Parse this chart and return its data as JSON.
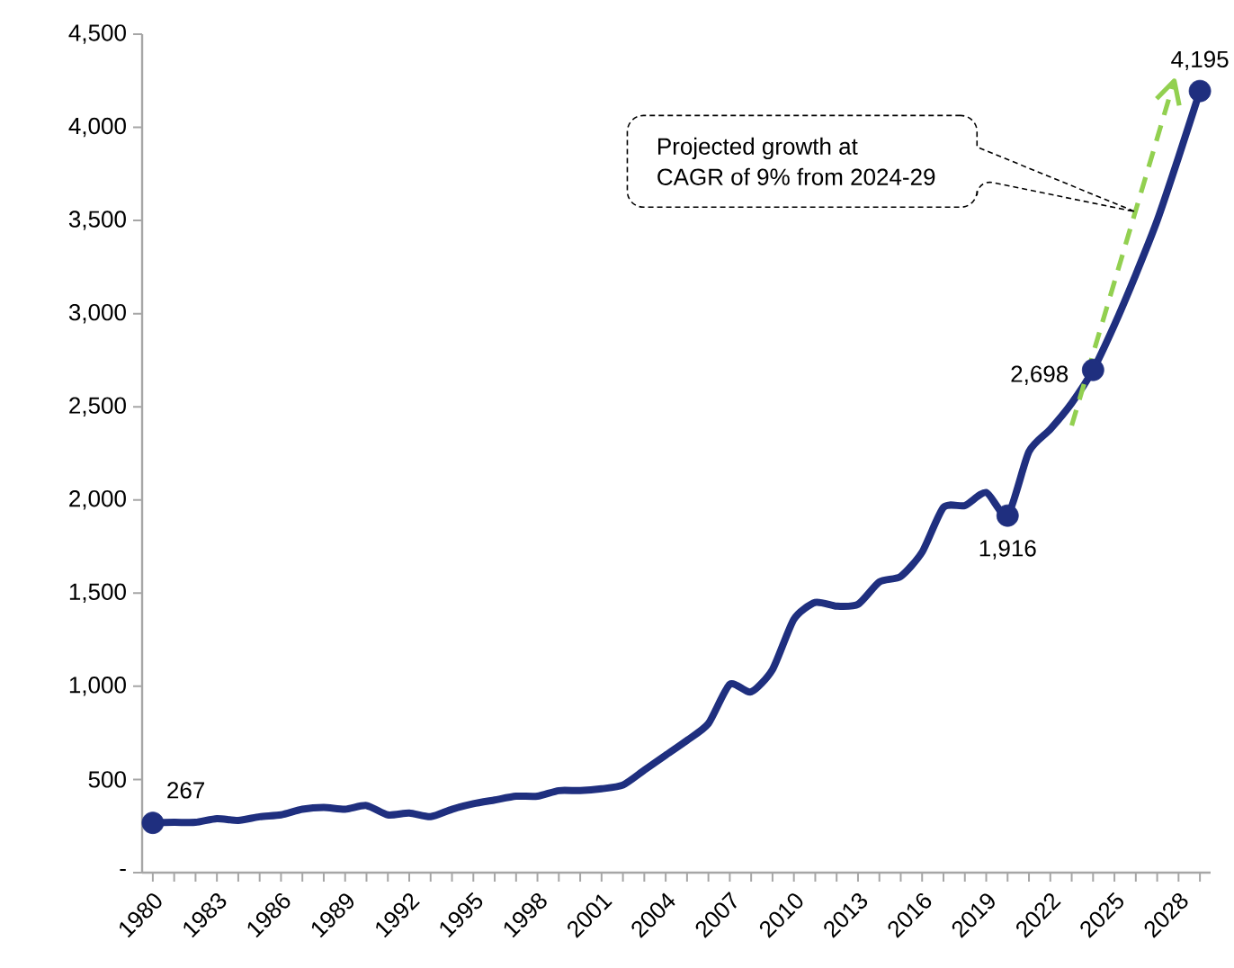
{
  "chart_data": {
    "type": "line",
    "x": [
      1980,
      1981,
      1982,
      1983,
      1984,
      1985,
      1986,
      1987,
      1988,
      1989,
      1990,
      1991,
      1992,
      1993,
      1994,
      1995,
      1996,
      1997,
      1998,
      1999,
      2000,
      2001,
      2002,
      2003,
      2004,
      2005,
      2006,
      2007,
      2008,
      2009,
      2010,
      2011,
      2012,
      2013,
      2014,
      2015,
      2016,
      2017,
      2018,
      2019,
      2020,
      2021,
      2022,
      2023,
      2024,
      2025,
      2026,
      2027,
      2028,
      2029
    ],
    "series": [
      {
        "color": "#1f2f7f",
        "marker": "none",
        "line_style": "solid",
        "values": [
          267,
          270,
          270,
          290,
          280,
          300,
          310,
          340,
          350,
          340,
          360,
          310,
          320,
          300,
          340,
          370,
          390,
          410,
          410,
          440,
          440,
          450,
          470,
          550,
          630,
          710,
          800,
          1010,
          970,
          1090,
          1360,
          1450,
          1430,
          1440,
          1560,
          1590,
          1720,
          1960,
          1970,
          2040,
          1916,
          2260,
          2380,
          2520,
          2698,
          2940,
          3210,
          3500,
          3840,
          4195
        ]
      },
      {
        "type": "scatter",
        "color": "#1f2f7f",
        "marker": "circle",
        "x": [
          1980,
          2020,
          2024,
          2029
        ],
        "values": [
          267,
          1916,
          2698,
          4195
        ],
        "value_labels": [
          "267",
          "1,916",
          "2,698",
          "4,195"
        ]
      },
      {
        "type": "line",
        "color": "#92d050",
        "marker": "none",
        "line_style": "dashed",
        "x": [
          2023,
          2027.8
        ],
        "values": [
          2400,
          4250
        ]
      }
    ],
    "annotations": [
      "Projected growth at\nCAGR of 9% from 2024-29"
    ],
    "xlim": [
      1979.5,
      2029.5
    ],
    "xticks": [
      1980,
      {
        "value": 1981,
        "label": null
      },
      {
        "value": 1982,
        "label": null
      },
      1983,
      {
        "value": 1984,
        "label": null
      },
      {
        "value": 1985,
        "label": null
      },
      1986,
      {
        "value": 1987,
        "label": null
      },
      {
        "value": 1988,
        "label": null
      },
      1989,
      {
        "value": 1990,
        "label": null
      },
      {
        "value": 1991,
        "label": null
      },
      1992,
      {
        "value": 1993,
        "label": null
      },
      {
        "value": 1994,
        "label": null
      },
      1995,
      {
        "value": 1996,
        "label": null
      },
      {
        "value": 1997,
        "label": null
      },
      1998,
      {
        "value": 1999,
        "label": null
      },
      {
        "value": 2000,
        "label": null
      },
      2001,
      {
        "value": 2002,
        "label": null
      },
      {
        "value": 2003,
        "label": null
      },
      2004,
      {
        "value": 2005,
        "label": null
      },
      {
        "value": 2006,
        "label": null
      },
      2007,
      {
        "value": 2008,
        "label": null
      },
      {
        "value": 2009,
        "label": null
      },
      2010,
      {
        "value": 2011,
        "label": null
      },
      {
        "value": 2012,
        "label": null
      },
      2013,
      {
        "value": 2014,
        "label": null
      },
      {
        "value": 2015,
        "label": null
      },
      2016,
      {
        "value": 2017,
        "label": null
      },
      {
        "value": 2018,
        "label": null
      },
      2019,
      {
        "value": 2020,
        "label": null
      },
      {
        "value": 2021,
        "label": null
      },
      2022,
      {
        "value": 2023,
        "label": null
      },
      {
        "value": 2024,
        "label": null
      },
      2025,
      {
        "value": 2026,
        "label": null
      },
      {
        "value": 2027,
        "label": null
      },
      2028,
      {
        "value": 2029,
        "label": null
      }
    ],
    "ylim": [
      0,
      4500
    ],
    "yticks": [
      {
        "value": 0,
        "label": "-"
      },
      {
        "value": 500,
        "label": "500"
      },
      {
        "value": 1000,
        "label": "1,000"
      },
      {
        "value": 1500,
        "label": "1,500"
      },
      {
        "value": 2000,
        "label": "2,000"
      },
      {
        "value": 2500,
        "label": "2,500"
      },
      {
        "value": 3000,
        "label": "3,000"
      },
      {
        "value": 3500,
        "label": "3,500"
      },
      {
        "value": 4000,
        "label": "4,000"
      },
      {
        "value": 4500,
        "label": "4,500"
      }
    ],
    "grid": false
  }
}
